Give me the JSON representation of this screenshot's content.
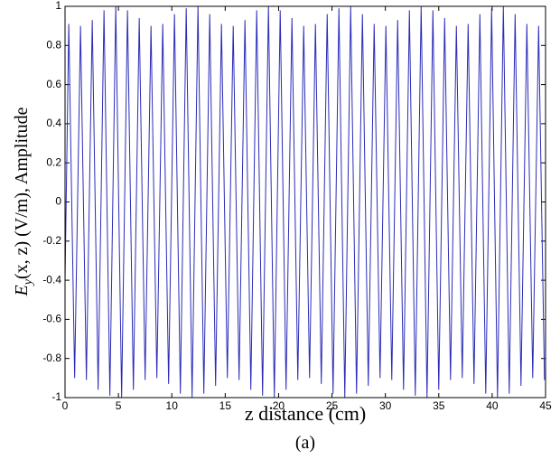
{
  "chart_data": {
    "type": "line",
    "xlabel": "z distance (cm)",
    "ylabel": {
      "symbol": "E",
      "subscript": "y",
      "rest": "(x, z) (V/m), Amplitude"
    },
    "caption": "(a)",
    "x": [
      0,
      0.35,
      0.9,
      1.45,
      2,
      2.55,
      3.1,
      3.65,
      4.2,
      4.75,
      5.3,
      5.85,
      6.4,
      6.95,
      7.5,
      8.05,
      8.6,
      9.15,
      9.7,
      10.25,
      10.8,
      11.35,
      11.9,
      12.45,
      13,
      13.55,
      14.1,
      14.65,
      15.2,
      15.75,
      16.3,
      16.85,
      17.4,
      17.95,
      18.5,
      19.05,
      19.6,
      20.15,
      20.7,
      21.25,
      21.8,
      22.35,
      22.9,
      23.45,
      24,
      24.55,
      25.1,
      25.65,
      26.2,
      26.75,
      27.3,
      27.85,
      28.4,
      28.95,
      29.5,
      30.05,
      30.6,
      31.15,
      31.7,
      32.25,
      32.8,
      33.35,
      33.9,
      34.45,
      35,
      35.55,
      36.1,
      36.65,
      37.2,
      37.75,
      38.3,
      38.85,
      39.4,
      39.95,
      40.5,
      41.05,
      41.6,
      42.15,
      42.7,
      43.25,
      43.8,
      44.35,
      44.9
    ],
    "series": [
      {
        "color": "#2b2bb8",
        "values": [
          -0.4,
          0.91,
          -0.9,
          0.9,
          -0.91,
          0.93,
          -0.96,
          0.98,
          -0.99,
          1,
          -1,
          0.98,
          -0.96,
          0.94,
          -0.91,
          0.9,
          -0.9,
          0.91,
          -0.93,
          0.96,
          -0.98,
          0.99,
          -1,
          1,
          -0.98,
          0.96,
          -0.94,
          0.91,
          -0.9,
          0.9,
          -0.91,
          0.93,
          -0.96,
          0.98,
          -0.99,
          1,
          -1,
          0.98,
          -0.96,
          0.94,
          -0.91,
          0.9,
          -0.9,
          0.91,
          -0.93,
          0.96,
          -0.98,
          0.99,
          -1,
          1,
          -0.98,
          0.96,
          -0.94,
          0.91,
          -0.9,
          0.9,
          -0.91,
          0.93,
          -0.96,
          0.98,
          -0.99,
          1,
          -1,
          0.98,
          -0.96,
          0.94,
          -0.91,
          0.9,
          -0.9,
          0.91,
          -0.93,
          0.96,
          -0.98,
          0.99,
          -1,
          1,
          -0.98,
          0.96,
          -0.94,
          0.91,
          -0.9,
          0.9,
          -0.91
        ]
      }
    ],
    "xlim": [
      0,
      45
    ],
    "xticks": [
      0,
      5,
      10,
      15,
      20,
      25,
      30,
      35,
      40,
      45
    ],
    "ylim": [
      -1,
      1
    ],
    "yticks": [
      -1,
      -0.8,
      -0.6,
      -0.4,
      -0.2,
      0,
      0.2,
      0.4,
      0.6,
      0.8,
      1
    ],
    "grid": false
  }
}
